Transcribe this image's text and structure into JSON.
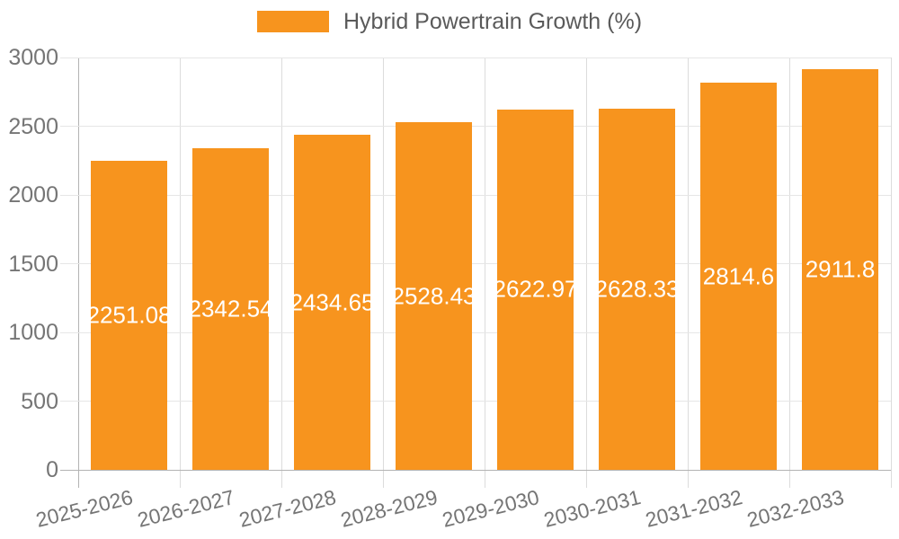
{
  "chart_data": {
    "type": "bar",
    "title": "",
    "legend": {
      "label": "Hybrid Powertrain Growth (%)",
      "position": "top"
    },
    "categories": [
      "2025-2026",
      "2026-2027",
      "2027-2028",
      "2028-2029",
      "2029-2030",
      "2030-2031",
      "2031-2032",
      "2032-2033"
    ],
    "values": [
      2251.08,
      2342.54,
      2434.65,
      2528.43,
      2622.97,
      2628.33,
      2814.6,
      2911.8
    ],
    "value_labels": [
      "2251.08",
      "2342.54",
      "2434.65",
      "2528.43",
      "2622.97",
      "2628.33",
      "2814.6",
      "2911.8"
    ],
    "ylabel": "",
    "xlabel": "",
    "ylim": [
      0,
      3000
    ],
    "yticks": [
      0,
      500,
      1000,
      1500,
      2000,
      2500,
      3000
    ],
    "grid": true,
    "xlabel_rotation_deg": -14,
    "bar_color": "#F7941E",
    "colors": {
      "value_text": "#FFFFFF",
      "axis_text": "#757575",
      "legend_text": "#5A5A5A",
      "gridline": "#E6E6E6",
      "category_line": "#DCDCDC",
      "axis_line": "#B3B3B3",
      "background": "#FFFFFF"
    }
  }
}
